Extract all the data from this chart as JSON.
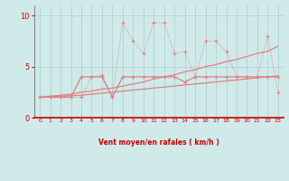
{
  "title": "",
  "xlabel": "Vent moyen/en rafales ( km/h )",
  "ylabel": "",
  "background_color": "#d0eaea",
  "grid_color": "#aacccc",
  "line_color": "#e08080",
  "axis_label_color": "#cc0000",
  "tick_color": "#cc0000",
  "xlim": [
    -0.5,
    23.5
  ],
  "ylim": [
    0,
    11
  ],
  "yticks": [
    0,
    5,
    10
  ],
  "xticks": [
    0,
    1,
    2,
    3,
    4,
    5,
    6,
    7,
    8,
    9,
    10,
    11,
    12,
    13,
    14,
    15,
    16,
    17,
    18,
    19,
    20,
    21,
    22,
    23
  ],
  "x": [
    0,
    1,
    2,
    3,
    4,
    5,
    6,
    7,
    8,
    9,
    10,
    11,
    12,
    13,
    14,
    15,
    16,
    17,
    18,
    19,
    20,
    21,
    22,
    23
  ],
  "y_rafales": [
    2.0,
    2.0,
    2.0,
    2.0,
    2.0,
    4.0,
    4.2,
    2.0,
    9.3,
    7.5,
    6.3,
    9.3,
    9.3,
    6.3,
    6.5,
    4.0,
    7.5,
    7.5,
    6.5,
    4.0,
    4.0,
    4.0,
    8.0,
    2.5
  ],
  "y_moyen": [
    2.0,
    2.0,
    2.0,
    2.0,
    4.0,
    4.0,
    4.0,
    2.0,
    4.0,
    4.0,
    4.0,
    4.0,
    4.0,
    4.0,
    3.5,
    4.0,
    4.0,
    4.0,
    4.0,
    4.0,
    4.0,
    4.0,
    4.0,
    4.0
  ],
  "y_trend1": [
    2.0,
    2.1,
    2.2,
    2.3,
    2.5,
    2.6,
    2.8,
    2.9,
    3.1,
    3.3,
    3.5,
    3.8,
    4.0,
    4.2,
    4.5,
    4.7,
    5.0,
    5.2,
    5.5,
    5.7,
    6.0,
    6.3,
    6.5,
    7.0
  ],
  "y_trend2": [
    2.0,
    2.05,
    2.1,
    2.15,
    2.2,
    2.3,
    2.4,
    2.5,
    2.6,
    2.7,
    2.8,
    2.9,
    3.0,
    3.1,
    3.2,
    3.3,
    3.4,
    3.5,
    3.6,
    3.7,
    3.8,
    3.9,
    4.0,
    4.1
  ],
  "arrow_labels": [
    "↙",
    "↓",
    "↓",
    "↘",
    "↗",
    "↓",
    "↓",
    "↓",
    "←",
    "→",
    "→",
    "↘",
    "↓",
    "↓",
    "↘",
    "↓",
    "↘",
    "↓",
    "↗",
    "↘",
    "→",
    "→",
    "↓",
    "↓"
  ]
}
